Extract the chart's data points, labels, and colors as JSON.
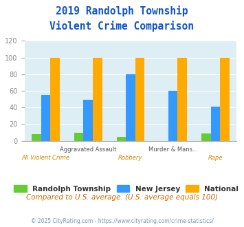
{
  "title_line1": "2019 Randolph Township",
  "title_line2": "Violent Crime Comparison",
  "categories": [
    "All Violent Crime",
    "Aggravated Assault",
    "Robbery",
    "Murder & Mans...",
    "Rape"
  ],
  "cat_labels_top": [
    "",
    "Aggravated Assault",
    "",
    "Murder & Mans...",
    ""
  ],
  "cat_labels_bot": [
    "All Violent Crime",
    "",
    "Robbery",
    "",
    "Rape"
  ],
  "randolph": [
    8,
    10,
    5,
    0,
    9
  ],
  "new_jersey": [
    55,
    49,
    80,
    60,
    41
  ],
  "national": [
    100,
    100,
    100,
    100,
    100
  ],
  "color_randolph": "#66cc33",
  "color_nj": "#3399ff",
  "color_national": "#ffaa00",
  "ylim": [
    0,
    120
  ],
  "yticks": [
    0,
    20,
    40,
    60,
    80,
    100,
    120
  ],
  "bg_color": "#ddeef5",
  "footnote1": "Compared to U.S. average. (U.S. average equals 100)",
  "footnote2": "© 2025 CityRating.com - https://www.cityrating.com/crime-statistics/",
  "legend_labels": [
    "Randolph Township",
    "New Jersey",
    "National"
  ],
  "title_color": "#1155cc",
  "footnote1_color": "#cc6600",
  "footnote2_color": "#7799aa",
  "xlabel_top_color": "#555555",
  "xlabel_bot_color": "#cc8800"
}
